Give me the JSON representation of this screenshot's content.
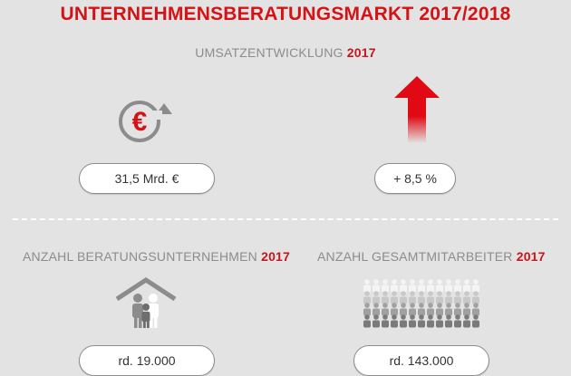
{
  "header": {
    "title": "UNTERNEHMENSBERATUNGSMARKT 2017/2018"
  },
  "revenue_section": {
    "label": "UMSATZENTWICKLUNG",
    "year": "2017",
    "revenue_value": "31,5 Mrd. €",
    "growth_value": "+ 8,5 %"
  },
  "companies_section": {
    "label": "ANZAHL BERATUNGSUNTERNEHMEN",
    "year": "2017",
    "value": "rd. 19.000"
  },
  "employees_section": {
    "label": "ANZAHL GESAMTMITARBEITER",
    "year": "2017",
    "value": "rd. 143.000"
  },
  "colors": {
    "accent": "#d51317",
    "text_gray": "#8c8c8c",
    "background": "#e3e3e3"
  },
  "icons": [
    "euro-cycle-icon",
    "up-arrow-icon",
    "house-people-icon",
    "crowd-icon"
  ]
}
